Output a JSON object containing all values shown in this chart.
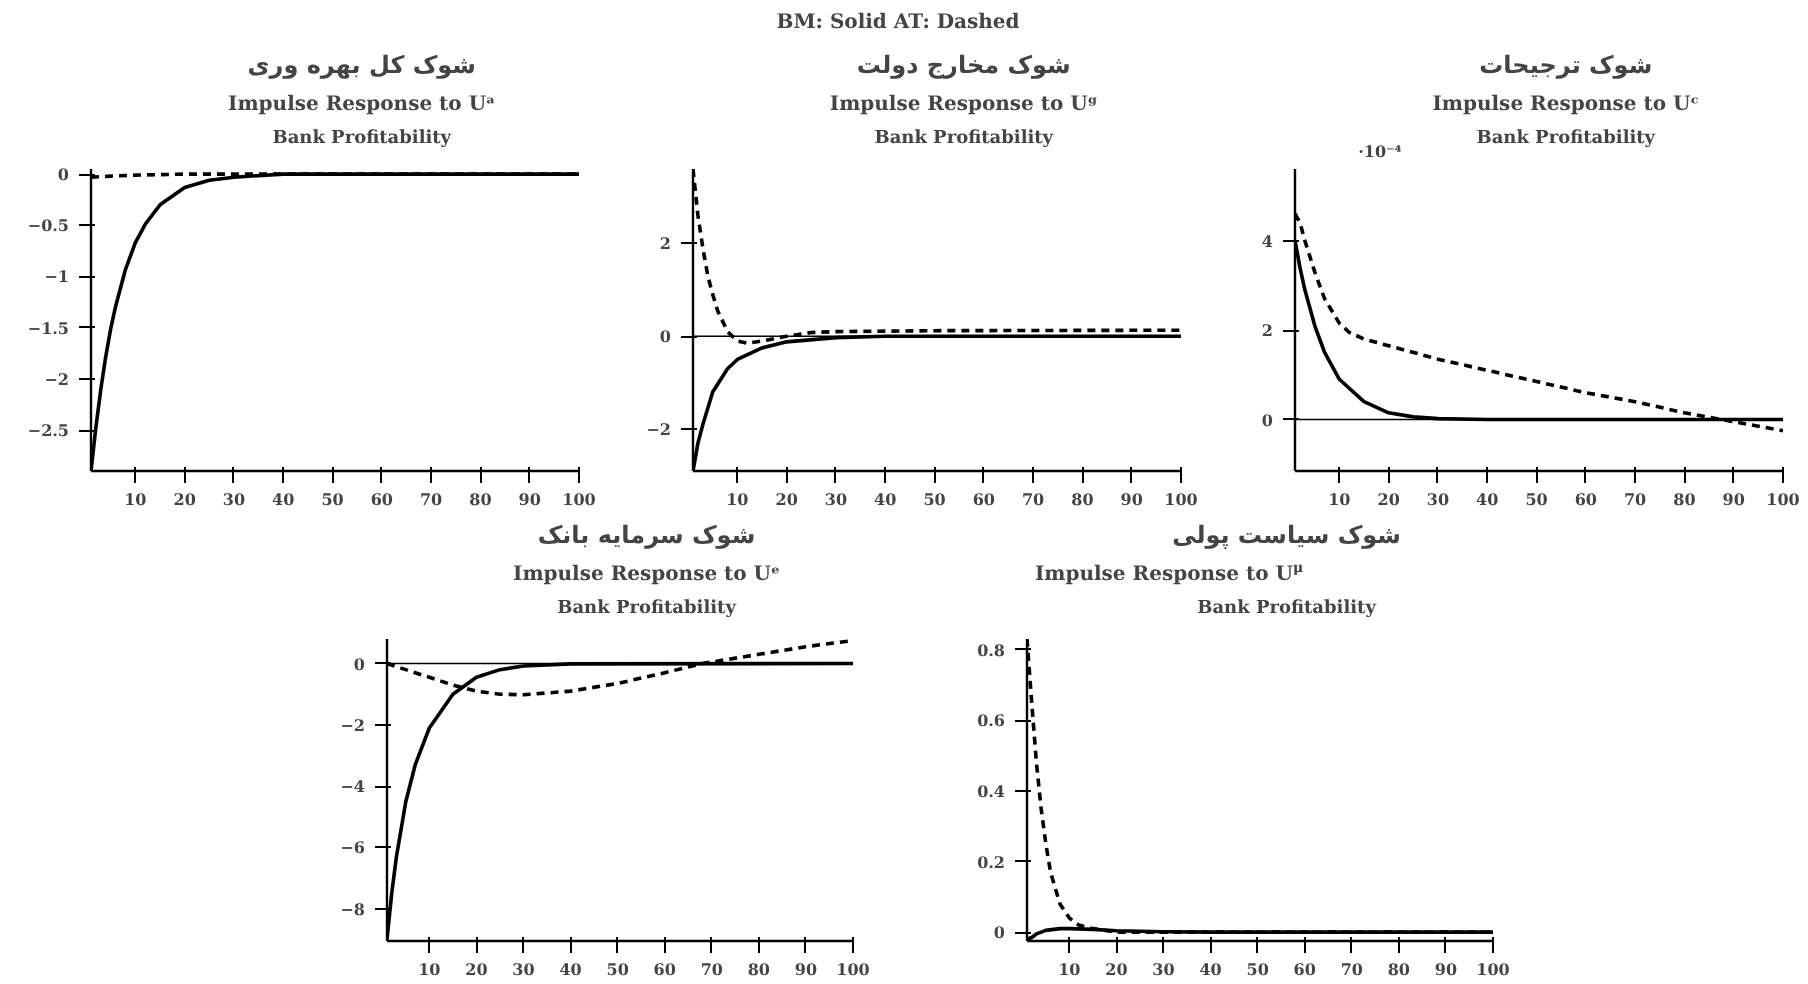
{
  "chart_data": [
    {
      "type": "other",
      "title": "BM: Solid   AT: Dashed"
    },
    {
      "type": "line",
      "title": "شوک کل بهره وری",
      "subtitle": "Impulse Response to Uᵃ",
      "annotations": [
        "Bank Profitability"
      ],
      "grid": false,
      "xlim": [
        1,
        100
      ],
      "xticks": [
        10,
        20,
        30,
        40,
        50,
        60,
        70,
        80,
        90,
        100
      ],
      "ylim": [
        -2.9,
        0.05
      ],
      "yticks": [
        0,
        -0.5,
        -1,
        -1.5,
        -2,
        -2.5
      ],
      "series": [
        {
          "color": "#000000",
          "line_style": "solid",
          "x": [
            1,
            2,
            3,
            4,
            5,
            6,
            8,
            10,
            12,
            15,
            20,
            25,
            30,
            40,
            100
          ],
          "values": [
            -2.9,
            -2.47,
            -2.1,
            -1.78,
            -1.51,
            -1.29,
            -0.93,
            -0.67,
            -0.49,
            -0.3,
            -0.13,
            -0.06,
            -0.03,
            0,
            0
          ]
        },
        {
          "color": "#000000",
          "line_style": "dashed",
          "x": [
            1,
            5,
            10,
            20,
            100
          ],
          "values": [
            -0.03,
            -0.02,
            -0.01,
            0,
            0
          ]
        }
      ]
    },
    {
      "type": "line",
      "title": "شوک مخارج دولت",
      "subtitle": "Impulse Response to Uᵍ",
      "annotations": [
        "Bank Profitability"
      ],
      "grid": false,
      "xlim": [
        1,
        100
      ],
      "xticks": [
        10,
        20,
        30,
        40,
        50,
        60,
        70,
        80,
        90,
        100
      ],
      "ylim": [
        -2.9,
        3.6
      ],
      "yticks": [
        -2,
        0,
        2
      ],
      "ref_lines": [
        {
          "axis": "y",
          "value": 0,
          "color": "#000000"
        }
      ],
      "series": [
        {
          "color": "#000000",
          "line_style": "solid",
          "x": [
            1,
            2,
            3,
            5,
            8,
            10,
            15,
            20,
            30,
            40,
            100
          ],
          "values": [
            -2.9,
            -2.3,
            -1.9,
            -1.2,
            -0.7,
            -0.5,
            -0.25,
            -0.12,
            -0.03,
            0,
            0
          ]
        },
        {
          "color": "#000000",
          "line_style": "dashed",
          "x": [
            1,
            2,
            3,
            4,
            5,
            6,
            8,
            10,
            12,
            15,
            20,
            25,
            30,
            50,
            100
          ],
          "values": [
            3.6,
            2.6,
            1.9,
            1.3,
            0.9,
            0.55,
            0.1,
            -0.1,
            -0.15,
            -0.1,
            0,
            0.08,
            0.1,
            0.12,
            0.13
          ]
        }
      ]
    },
    {
      "type": "line",
      "title": "شوک ترجیحات",
      "subtitle": "Impulse Response to Uᶜ",
      "annotations": [
        "Bank Profitability",
        "·10⁻⁴"
      ],
      "grid": false,
      "xlim": [
        1,
        100
      ],
      "xticks": [
        10,
        20,
        30,
        40,
        50,
        60,
        70,
        80,
        90,
        100
      ],
      "ylim": [
        -1.15,
        5.6
      ],
      "yticks": [
        0,
        2,
        4
      ],
      "ref_lines": [
        {
          "axis": "y",
          "value": 0,
          "color": "#000000"
        }
      ],
      "series": [
        {
          "color": "#000000",
          "line_style": "solid",
          "x": [
            1,
            2,
            3,
            5,
            7,
            10,
            15,
            20,
            25,
            30,
            40,
            100
          ],
          "values": [
            4.0,
            3.4,
            2.9,
            2.1,
            1.5,
            0.9,
            0.4,
            0.15,
            0.06,
            0.02,
            0,
            0
          ]
        },
        {
          "color": "#000000",
          "line_style": "dashed",
          "x": [
            1,
            2,
            3,
            5,
            7,
            10,
            12,
            15,
            20,
            30,
            40,
            50,
            60,
            70,
            80,
            90,
            100
          ],
          "values": [
            4.6,
            4.4,
            4.0,
            3.3,
            2.7,
            2.15,
            1.95,
            1.8,
            1.65,
            1.35,
            1.1,
            0.85,
            0.6,
            0.4,
            0.15,
            -0.05,
            -0.25
          ]
        }
      ]
    },
    {
      "type": "line",
      "title": "شوک سرمایه بانک",
      "subtitle": "Impulse Response to Uᵉ",
      "annotations": [
        "Bank Profitability"
      ],
      "grid": false,
      "xlim": [
        1,
        100
      ],
      "xticks": [
        10,
        20,
        30,
        40,
        50,
        60,
        70,
        80,
        90,
        100
      ],
      "ylim": [
        -9.05,
        0.8
      ],
      "yticks": [
        0,
        -2,
        -4,
        -6,
        -8
      ],
      "ref_lines": [
        {
          "axis": "y",
          "value": 0,
          "color": "#000000"
        }
      ],
      "series": [
        {
          "color": "#000000",
          "line_style": "solid",
          "x": [
            1,
            2,
            3,
            5,
            7,
            10,
            15,
            20,
            25,
            30,
            40,
            100
          ],
          "values": [
            -9.0,
            -7.5,
            -6.3,
            -4.5,
            -3.3,
            -2.1,
            -1.0,
            -0.45,
            -0.2,
            -0.08,
            -0.01,
            0
          ]
        },
        {
          "color": "#000000",
          "line_style": "dashed",
          "x": [
            1,
            5,
            10,
            15,
            20,
            25,
            30,
            40,
            50,
            60,
            68,
            80,
            90,
            100
          ],
          "values": [
            0,
            -0.2,
            -0.45,
            -0.7,
            -0.9,
            -1.0,
            -1.02,
            -0.9,
            -0.65,
            -0.3,
            0,
            0.3,
            0.55,
            0.75
          ]
        }
      ]
    },
    {
      "type": "line",
      "title": "شوک سیاست پولی",
      "subtitle": "Impulse Response to U$^{μ}$",
      "annotations": [
        "Bank Profitability"
      ],
      "grid": false,
      "xlim": [
        1,
        100
      ],
      "xticks": [
        10,
        20,
        30,
        40,
        50,
        60,
        70,
        80,
        90,
        100
      ],
      "ylim": [
        -0.025,
        0.83
      ],
      "yticks": [
        0,
        0.2,
        0.4,
        0.6,
        0.8
      ],
      "series": [
        {
          "color": "#000000",
          "line_style": "solid",
          "x": [
            1,
            2,
            3,
            5,
            8,
            10,
            15,
            20,
            30,
            40,
            100
          ],
          "values": [
            -0.02,
            -0.015,
            -0.005,
            0.005,
            0.01,
            0.01,
            0.008,
            0.004,
            0.001,
            0,
            0
          ]
        },
        {
          "color": "#000000",
          "line_style": "dashed",
          "x": [
            1,
            2,
            3,
            4,
            5,
            6,
            8,
            10,
            12,
            15,
            20,
            100
          ],
          "values": [
            0.83,
            0.65,
            0.48,
            0.35,
            0.25,
            0.17,
            0.08,
            0.04,
            0.02,
            0.01,
            0,
            0
          ]
        }
      ]
    }
  ]
}
